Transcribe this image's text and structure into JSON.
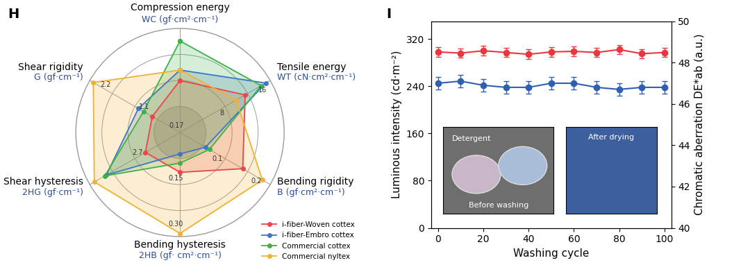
{
  "chart_data": [
    {
      "type": "radar",
      "panel_label": "H",
      "axes": [
        {
          "name": "Compression energy",
          "unit": "WC (gf·cm²·cm⁻¹)",
          "range": [
            0,
            0.5
          ],
          "ticks": []
        },
        {
          "name": "Tensile energy",
          "unit": "WT (cN·cm²·cm⁻¹)",
          "range": [
            0,
            18
          ],
          "ticks": [
            8,
            16
          ]
        },
        {
          "name": "Bending rigidity",
          "unit": "B (gf·cm²·cm⁻¹)",
          "range": [
            0,
            0.23
          ],
          "ticks": [
            0.1,
            0.2
          ]
        },
        {
          "name": "Bending hysteresis",
          "unit": "2HB (gf· cm²·cm⁻¹)",
          "range": [
            0,
            0.34
          ],
          "ticks": [
            0.15,
            {
              "value": 0.3,
              "label": "0.30"
            }
          ]
        },
        {
          "name": "Shear hysteresis",
          "unit": "2HG (gf·cm⁻¹)",
          "range": [
            0,
            6
          ],
          "ticks": [
            2.7
          ]
        },
        {
          "name": "Shear rigidity",
          "unit": "G (gf·cm⁻¹)",
          "range": [
            0,
            2.6
          ],
          "ticks": [
            0.17,
            1.1,
            2.2
          ]
        }
      ],
      "series": [
        {
          "name": "i-fiber-Woven cottex",
          "color": "#e8474b",
          "marker": "o",
          "values": [
            0.25,
            13,
            0.16,
            0.13,
            2.3,
            0.8
          ]
        },
        {
          "name": "i-fiber-Embro cottex",
          "color": "#3f76c9",
          "marker": "o",
          "values": [
            0.3,
            17.1,
            0.065,
            0.07,
            4.9,
            1.2
          ]
        },
        {
          "name": "Commercial cottex",
          "color": "#3cb34a",
          "marker": "o",
          "values": [
            0.44,
            16.2,
            0.075,
            0.1,
            5.0,
            1.05
          ]
        },
        {
          "name": "Commercial nyltex",
          "color": "#f0b232",
          "marker": "o",
          "values": [
            0.3,
            11.2,
            0.21,
            0.33,
            5.7,
            2.5
          ]
        }
      ],
      "legend": "lower right"
    },
    {
      "type": "line",
      "panel_label": "I",
      "x": [
        0,
        10,
        20,
        30,
        40,
        50,
        60,
        70,
        80,
        90,
        100
      ],
      "xlim": [
        -3,
        103
      ],
      "xticks": [
        0,
        20,
        40,
        60,
        80,
        100
      ],
      "xlabel": "Washing cycle",
      "ylabel": "Luminous intensity (cd·m⁻²)",
      "ylim": [
        0,
        350
      ],
      "yticks": [
        0,
        80,
        160,
        240,
        320
      ],
      "y2label": "Chromatic aberration DE*ab (a.u.)",
      "y2lim": [
        40,
        50
      ],
      "y2ticks": [
        40,
        42,
        44,
        46,
        48,
        50
      ],
      "series": [
        {
          "color": "#e8383d",
          "marker": "o",
          "axis": "y",
          "values": [
            298,
            296,
            300,
            297,
            294,
            298,
            299,
            297,
            302,
            295,
            297
          ],
          "errors": [
            8,
            8,
            8,
            8,
            8,
            8,
            8,
            8,
            8,
            8,
            8
          ]
        },
        {
          "color": "#2f5fb3",
          "marker": "o",
          "axis": "y2",
          "values": [
            47.0,
            47.1,
            46.9,
            46.8,
            46.8,
            47.0,
            47.0,
            46.8,
            46.7,
            46.8,
            46.8
          ],
          "errors": [
            0.3,
            0.3,
            0.3,
            0.3,
            0.3,
            0.3,
            0.3,
            0.3,
            0.3,
            0.3,
            0.3
          ]
        }
      ],
      "annotations": [
        "Detergent",
        "Before washing",
        "After drying"
      ]
    }
  ]
}
